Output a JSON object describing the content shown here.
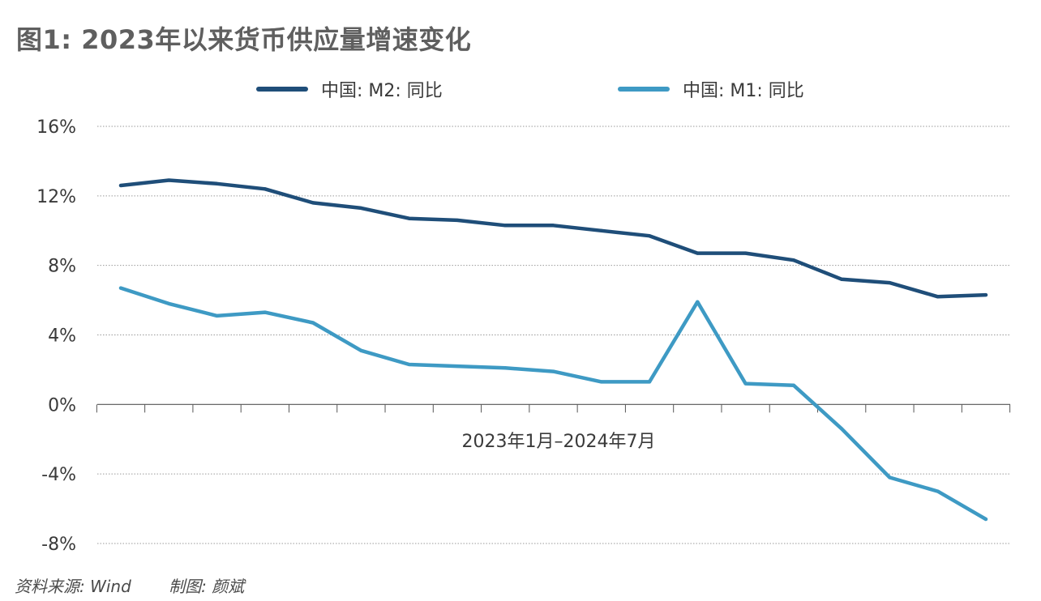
{
  "title": "图1: 2023年以来货币供应量增速变化",
  "source": {
    "data_source": "资料来源: Wind",
    "author": "制图: 颜斌"
  },
  "chart_data": {
    "type": "line",
    "title": "图1: 2023年以来货币供应量增速变化",
    "xlabel": "2023年1月–2024年7月",
    "ylabel": "",
    "ylim": [
      -8,
      16
    ],
    "yticks": [
      16,
      12,
      8,
      4,
      0,
      -4,
      -8
    ],
    "ytick_labels": [
      "16%",
      "12%",
      "8%",
      "4%",
      "0%",
      "-4%",
      "-8%"
    ],
    "grid": true,
    "legend_position": "top",
    "x": [
      "2023-01",
      "2023-02",
      "2023-03",
      "2023-04",
      "2023-05",
      "2023-06",
      "2023-07",
      "2023-08",
      "2023-09",
      "2023-10",
      "2023-11",
      "2023-12",
      "2024-01",
      "2024-02",
      "2024-03",
      "2024-04",
      "2024-05",
      "2024-06",
      "2024-07"
    ],
    "series": [
      {
        "name": "中国: M2: 同比",
        "color": "#1f4e79",
        "values": [
          12.6,
          12.9,
          12.7,
          12.4,
          11.6,
          11.3,
          10.7,
          10.6,
          10.3,
          10.3,
          10.0,
          9.7,
          8.7,
          8.7,
          8.3,
          7.2,
          7.0,
          6.2,
          6.3
        ]
      },
      {
        "name": "中国: M1: 同比",
        "color": "#3e9ac4",
        "values": [
          6.7,
          5.8,
          5.1,
          5.3,
          4.7,
          3.1,
          2.3,
          2.2,
          2.1,
          1.9,
          1.3,
          1.3,
          5.9,
          1.2,
          1.1,
          -1.4,
          -4.2,
          -5.0,
          -6.6
        ]
      }
    ]
  }
}
